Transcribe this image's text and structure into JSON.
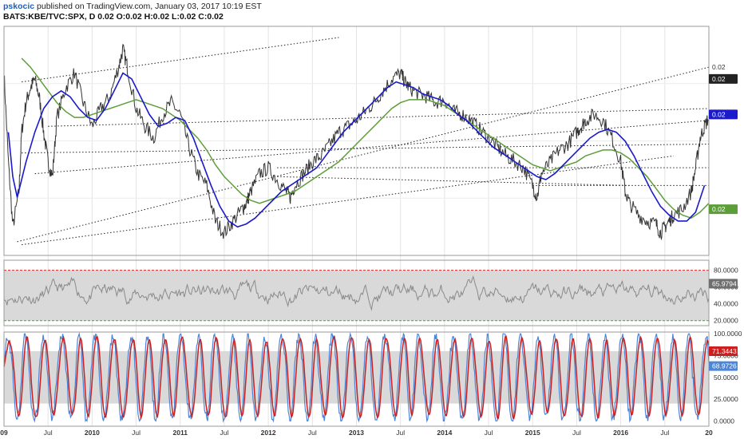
{
  "header": {
    "author": "pskocic",
    "published": "published on TradingView.com, January 03, 2017 10:19 EST",
    "symbol": "BATS:KBE/TVC:SPX, D",
    "ohlc": "0.02 O:0.02 H:0.02 L:0.02 C:0.02"
  },
  "colors": {
    "price": "#333333",
    "sma_fast": "#1a1acc",
    "sma_slow": "#5e9e3a",
    "rsi": "#8a8a8a",
    "stoch_k": "#4d86d6",
    "stoch_d": "#cc1f1f",
    "band": "#d9d9d9",
    "upper_line": "#dd2222",
    "lower_line": "#33aa33"
  },
  "chart_data": [
    {
      "type": "line",
      "panel": "price",
      "x_axis": {
        "labels": [
          "09",
          "Jul",
          "2010",
          "Jul",
          "2011",
          "Jul",
          "2012",
          "Jul",
          "2013",
          "Jul",
          "2014",
          "Jul",
          "2015",
          "Jul",
          "2016",
          "Jul",
          "20"
        ],
        "range": [
          2009.0,
          2017.0
        ]
      },
      "series": [
        {
          "key": "price",
          "x": [
            2009.0,
            2009.05,
            2009.1,
            2009.17,
            2009.2,
            2009.25,
            2009.3,
            2009.35,
            2009.4,
            2009.45,
            2009.5,
            2009.55,
            2009.6,
            2009.7,
            2009.8,
            2009.9,
            2010.0,
            2010.1,
            2010.2,
            2010.3,
            2010.35,
            2010.4,
            2010.5,
            2010.6,
            2010.7,
            2010.8,
            2010.9,
            2011.0,
            2011.1,
            2011.2,
            2011.3,
            2011.4,
            2011.5,
            2011.6,
            2011.7,
            2011.75,
            2011.8,
            2011.9,
            2012.0,
            2012.1,
            2012.2,
            2012.25,
            2012.3,
            2012.4,
            2012.5,
            2012.6,
            2012.7,
            2012.8,
            2012.9,
            2013.0,
            2013.1,
            2013.2,
            2013.3,
            2013.4,
            2013.5,
            2013.55,
            2013.6,
            2013.7,
            2013.8,
            2013.9,
            2014.0,
            2014.1,
            2014.2,
            2014.3,
            2014.4,
            2014.5,
            2014.6,
            2014.7,
            2014.8,
            2014.9,
            2015.0,
            2015.05,
            2015.1,
            2015.2,
            2015.3,
            2015.4,
            2015.5,
            2015.55,
            2015.6,
            2015.7,
            2015.8,
            2015.9,
            2016.0,
            2016.05,
            2016.1,
            2016.2,
            2016.3,
            2016.4,
            2016.45,
            2016.5,
            2016.55,
            2016.6,
            2016.7,
            2016.8,
            2016.85,
            2016.9,
            2016.95,
            2017.0
          ],
          "y": [
            60,
            30,
            8,
            20,
            40,
            50,
            55,
            58,
            52,
            40,
            30,
            25,
            45,
            55,
            60,
            50,
            42,
            48,
            52,
            62,
            68,
            62,
            48,
            42,
            38,
            46,
            50,
            46,
            35,
            26,
            22,
            10,
            6,
            10,
            14,
            16,
            20,
            26,
            28,
            24,
            20,
            18,
            22,
            26,
            30,
            32,
            36,
            40,
            42,
            44,
            47,
            50,
            54,
            58,
            60,
            57,
            55,
            53,
            52,
            50,
            51,
            47,
            46,
            44,
            41,
            38,
            35,
            32,
            30,
            28,
            22,
            18,
            26,
            30,
            34,
            36,
            40,
            42,
            44,
            46,
            44,
            38,
            30,
            20,
            16,
            12,
            10,
            9,
            6,
            8,
            10,
            12,
            14,
            20,
            28,
            38,
            42,
            45
          ]
        },
        {
          "key": "sma_fast",
          "x": [
            2009.05,
            2009.1,
            2009.15,
            2009.25,
            2009.35,
            2009.45,
            2009.55,
            2009.65,
            2009.75,
            2009.85,
            2009.95,
            2010.05,
            2010.15,
            2010.25,
            2010.35,
            2010.45,
            2010.55,
            2010.65,
            2010.75,
            2010.85,
            2010.95,
            2011.05,
            2011.15,
            2011.25,
            2011.35,
            2011.45,
            2011.55,
            2011.65,
            2011.75,
            2011.85,
            2011.95,
            2012.05,
            2012.15,
            2012.25,
            2012.35,
            2012.45,
            2012.55,
            2012.65,
            2012.75,
            2012.85,
            2012.95,
            2013.05,
            2013.15,
            2013.25,
            2013.35,
            2013.45,
            2013.55,
            2013.65,
            2013.75,
            2013.85,
            2013.95,
            2014.05,
            2014.15,
            2014.25,
            2014.35,
            2014.45,
            2014.55,
            2014.65,
            2014.75,
            2014.85,
            2014.95,
            2015.05,
            2015.15,
            2015.25,
            2015.35,
            2015.45,
            2015.55,
            2015.65,
            2015.75,
            2015.85,
            2015.95,
            2016.05,
            2016.15,
            2016.25,
            2016.35,
            2016.45,
            2016.55,
            2016.65,
            2016.75,
            2016.85,
            2016.95
          ],
          "y": [
            40,
            25,
            18,
            30,
            40,
            48,
            52,
            54,
            52,
            48,
            45,
            44,
            48,
            54,
            60,
            58,
            52,
            46,
            42,
            43,
            45,
            44,
            38,
            30,
            22,
            15,
            10,
            8,
            9,
            11,
            14,
            17,
            20,
            22,
            24,
            26,
            28,
            32,
            36,
            40,
            43,
            46,
            49,
            52,
            55,
            57,
            56,
            55,
            53,
            52,
            51,
            49,
            46,
            44,
            41,
            38,
            35,
            33,
            31,
            29,
            27,
            25,
            24,
            26,
            29,
            32,
            35,
            38,
            40,
            41,
            40,
            37,
            32,
            26,
            20,
            15,
            12,
            10,
            10,
            13,
            22
          ]
        },
        {
          "key": "sma_slow",
          "x": [
            2009.2,
            2009.3,
            2009.4,
            2009.5,
            2009.6,
            2009.7,
            2009.8,
            2009.9,
            2010.0,
            2010.1,
            2010.2,
            2010.3,
            2010.4,
            2010.5,
            2010.6,
            2010.7,
            2010.8,
            2010.9,
            2011.0,
            2011.1,
            2011.2,
            2011.3,
            2011.4,
            2011.5,
            2011.6,
            2011.7,
            2011.8,
            2011.9,
            2012.0,
            2012.1,
            2012.2,
            2012.3,
            2012.4,
            2012.5,
            2012.6,
            2012.7,
            2012.8,
            2012.9,
            2013.0,
            2013.1,
            2013.2,
            2013.3,
            2013.4,
            2013.5,
            2013.6,
            2013.7,
            2013.8,
            2013.9,
            2014.0,
            2014.1,
            2014.2,
            2014.3,
            2014.4,
            2014.5,
            2014.6,
            2014.7,
            2014.8,
            2014.9,
            2015.0,
            2015.1,
            2015.2,
            2015.3,
            2015.4,
            2015.5,
            2015.6,
            2015.7,
            2015.8,
            2015.9,
            2016.0,
            2016.1,
            2016.2,
            2016.3,
            2016.4,
            2016.5,
            2016.6,
            2016.7,
            2016.8,
            2016.9,
            2017.0
          ],
          "y": [
            65,
            62,
            58,
            54,
            50,
            47,
            45,
            45,
            46,
            47,
            48,
            49,
            50,
            51,
            50,
            49,
            48,
            46,
            44,
            41,
            38,
            34,
            29,
            25,
            22,
            19,
            17,
            16,
            17,
            18,
            19,
            20,
            22,
            24,
            26,
            28,
            30,
            33,
            36,
            39,
            42,
            45,
            48,
            50,
            51,
            51,
            51,
            50,
            49,
            47,
            45,
            43,
            41,
            39,
            37,
            35,
            33,
            31,
            29,
            28,
            27,
            28,
            29,
            30,
            32,
            33,
            34,
            34,
            33,
            31,
            28,
            25,
            21,
            17,
            14,
            12,
            11,
            13,
            16
          ]
        }
      ],
      "axes_right_tags": [
        "0.02",
        "0.02",
        "0.02",
        "0.02"
      ]
    },
    {
      "type": "line",
      "panel": "rsi",
      "y_axis": {
        "ticks": [
          "80.0000",
          "60.0000",
          "40.0000",
          "20.0000"
        ],
        "range": [
          14,
          92
        ]
      },
      "bands": {
        "upper": 80,
        "lower": 20
      },
      "last_value": "65.9794",
      "series": [
        {
          "key": "rsi",
          "seed": 11,
          "base": 52,
          "amp": 16
        }
      ]
    },
    {
      "type": "line",
      "panel": "stochastic",
      "y_axis": {
        "ticks": [
          "100.0000",
          "75.0000",
          "50.0000",
          "25.0000",
          "0.0000"
        ],
        "range": [
          -6,
          102
        ]
      },
      "bands": {
        "upper": 80,
        "lower": 20
      },
      "last_values": {
        "d": "71.3443",
        "k": "68.9726"
      },
      "series": [
        {
          "key": "stoch_k",
          "seed": 29
        },
        {
          "key": "stoch_d",
          "seed": 29,
          "smooth": 3
        }
      ]
    }
  ]
}
